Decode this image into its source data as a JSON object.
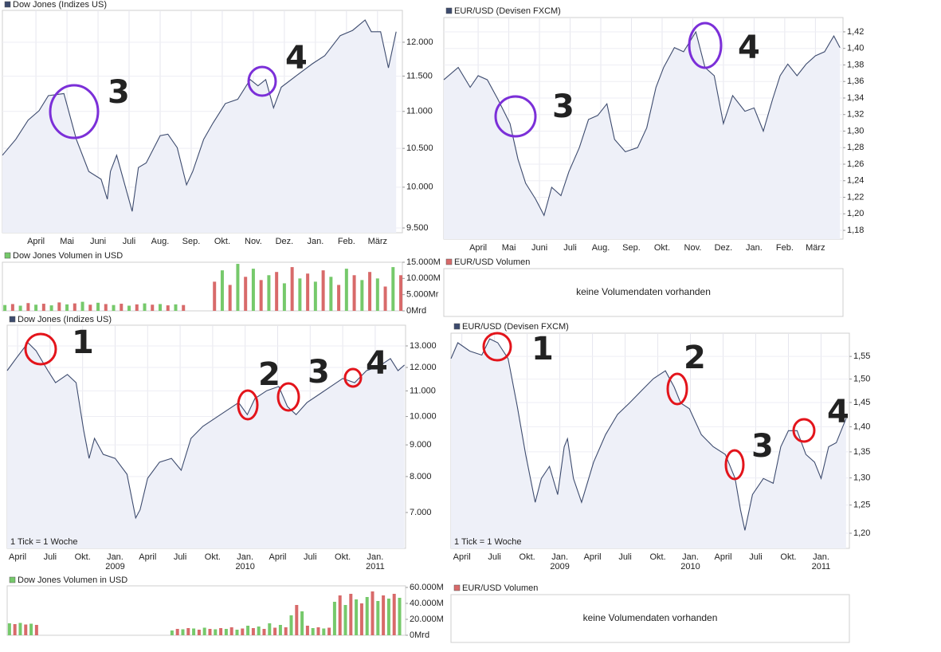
{
  "chart_data": [
    {
      "type": "line",
      "title": "Dow Jones (Indizes US)",
      "log": true,
      "grid": true,
      "color": "#3d4b6e",
      "annotation_color": "#7b2fd8",
      "annotations": [
        "3",
        "4"
      ],
      "x": [
        1.92,
        2.35,
        2.75,
        3.1,
        3.4,
        3.9,
        4.3,
        4.7,
        5.1,
        5.3,
        5.4,
        5.6,
        6.1,
        6.3,
        6.55,
        7.0,
        7.25,
        7.55,
        7.85,
        8.05,
        8.4,
        8.7,
        9.1,
        9.5,
        9.9,
        10.15,
        10.4,
        10.65,
        10.9,
        11.4,
        11.9,
        12.3,
        12.8,
        13.2,
        13.6,
        13.8,
        14.1,
        14.35,
        14.6
      ],
      "values": [
        10410,
        10620,
        10880,
        11010,
        11220,
        11250,
        10620,
        10200,
        10100,
        9850,
        10200,
        10410,
        9700,
        10250,
        10310,
        10670,
        10690,
        10510,
        10030,
        10200,
        10620,
        10840,
        11110,
        11170,
        11450,
        11360,
        11450,
        11050,
        11340,
        11510,
        11680,
        11800,
        12100,
        12180,
        12340,
        12160,
        12160,
        11620,
        12160
      ],
      "xlim": [
        1.92,
        14.8
      ],
      "ylim": [
        9443,
        12491
      ],
      "xticks": [
        {
          "value": 3,
          "label": "April"
        },
        {
          "value": 4,
          "label": "Mai"
        },
        {
          "value": 5,
          "label": "Juni"
        },
        {
          "value": 6,
          "label": "Juli"
        },
        {
          "value": 7,
          "label": "Aug."
        },
        {
          "value": 8,
          "label": "Sep."
        },
        {
          "value": 9,
          "label": "Okt."
        },
        {
          "value": 10,
          "label": "Nov."
        },
        {
          "value": 11,
          "label": "Dez."
        },
        {
          "value": 12,
          "label": "Jan."
        },
        {
          "value": 13,
          "label": "Feb."
        },
        {
          "value": 14,
          "label": "März"
        }
      ],
      "yticks": [
        {
          "value": 9500,
          "label": "9.500"
        },
        {
          "value": 10000,
          "label": "10.000"
        },
        {
          "value": 10500,
          "label": "10.500"
        },
        {
          "value": 11000,
          "label": "11.000"
        },
        {
          "value": 11500,
          "label": "11.500"
        },
        {
          "value": 12000,
          "label": "12.000"
        }
      ]
    },
    {
      "type": "bar",
      "title": "Dow Jones Volumen in USD",
      "colors": [
        "#76c96b",
        "#d86a6a"
      ],
      "x": [
        2.0,
        2.25,
        2.5,
        2.75,
        3.0,
        3.25,
        3.5,
        3.75,
        4.0,
        4.25,
        4.5,
        4.75,
        5.0,
        5.25,
        5.5,
        5.75,
        6.0,
        6.25,
        6.5,
        6.75,
        7.0,
        7.25,
        7.5,
        7.75,
        8.0,
        8.25,
        8.5,
        8.75,
        9.0,
        9.25,
        9.5,
        9.75,
        10.0,
        10.25,
        10.5,
        10.75,
        11.0,
        11.25,
        11.5,
        11.75,
        12.0,
        12.25,
        12.5,
        12.75,
        13.0,
        13.25,
        13.5,
        13.75,
        14.0,
        14.25,
        14.5,
        14.75
      ],
      "values": [
        1800,
        2100,
        1600,
        2400,
        1900,
        2200,
        1700,
        2600,
        2000,
        2300,
        2800,
        1900,
        2500,
        2100,
        1800,
        2200,
        1600,
        2000,
        2300,
        1900,
        2100,
        1700,
        2000,
        1800,
        null,
        null,
        null,
        9000,
        12500,
        8000,
        14500,
        10500,
        13000,
        9500,
        11000,
        12000,
        8500,
        13500,
        10000,
        11500,
        9000,
        12500,
        10500,
        8000,
        13000,
        11000,
        9500,
        12000,
        10000,
        7500,
        13500,
        11000
      ],
      "xlim": [
        1.92,
        14.8
      ],
      "ylim": [
        0,
        15000
      ],
      "yticks": [
        {
          "value": 0,
          "label": "0Mrd"
        },
        {
          "value": 5000,
          "label": "5.000Mr"
        },
        {
          "value": 10000,
          "label": "10.000M"
        },
        {
          "value": 15000,
          "label": "15.000M"
        }
      ]
    },
    {
      "type": "line",
      "title": "EUR/USD (Devisen FXCM)",
      "log": false,
      "grid": true,
      "color": "#3d4b6e",
      "annotation_color": "#7b2fd8",
      "annotations": [
        "3",
        "4"
      ],
      "x": [
        1.88,
        2.35,
        2.74,
        3.0,
        3.3,
        3.65,
        4.04,
        4.3,
        4.55,
        4.87,
        5.15,
        5.4,
        5.7,
        5.96,
        6.3,
        6.6,
        6.9,
        7.2,
        7.45,
        7.8,
        8.2,
        8.5,
        8.8,
        9.05,
        9.4,
        9.7,
        10.1,
        10.4,
        10.7,
        11.0,
        11.3,
        11.7,
        12.0,
        12.3,
        12.6,
        12.85,
        13.1,
        13.4,
        13.7,
        14.0,
        14.3,
        14.6,
        14.8
      ],
      "values": [
        1.362,
        1.377,
        1.353,
        1.367,
        1.362,
        1.338,
        1.309,
        1.266,
        1.237,
        1.218,
        1.198,
        1.232,
        1.222,
        1.251,
        1.28,
        1.314,
        1.319,
        1.333,
        1.29,
        1.275,
        1.28,
        1.304,
        1.353,
        1.377,
        1.401,
        1.396,
        1.42,
        1.377,
        1.367,
        1.309,
        1.343,
        1.324,
        1.328,
        1.3,
        1.338,
        1.367,
        1.381,
        1.367,
        1.381,
        1.391,
        1.396,
        1.415,
        1.401
      ],
      "xlim": [
        1.88,
        14.9
      ],
      "ylim": [
        1.1694,
        1.4373
      ],
      "xticks": [
        {
          "value": 3,
          "label": "April"
        },
        {
          "value": 4,
          "label": "Mai"
        },
        {
          "value": 5,
          "label": "Juni"
        },
        {
          "value": 6,
          "label": "Juli"
        },
        {
          "value": 7,
          "label": "Aug."
        },
        {
          "value": 8,
          "label": "Sep."
        },
        {
          "value": 9,
          "label": "Okt."
        },
        {
          "value": 10,
          "label": "Nov."
        },
        {
          "value": 11,
          "label": "Dez."
        },
        {
          "value": 12,
          "label": "Jan."
        },
        {
          "value": 13,
          "label": "Feb."
        },
        {
          "value": 14,
          "label": "März"
        }
      ],
      "yticks": [
        {
          "value": 1.18,
          "label": "1,18"
        },
        {
          "value": 1.2,
          "label": "1,20"
        },
        {
          "value": 1.22,
          "label": "1,22"
        },
        {
          "value": 1.24,
          "label": "1,24"
        },
        {
          "value": 1.26,
          "label": "1,26"
        },
        {
          "value": 1.28,
          "label": "1,28"
        },
        {
          "value": 1.3,
          "label": "1,30"
        },
        {
          "value": 1.32,
          "label": "1,32"
        },
        {
          "value": 1.34,
          "label": "1,34"
        },
        {
          "value": 1.36,
          "label": "1,36"
        },
        {
          "value": 1.38,
          "label": "1,38"
        },
        {
          "value": 1.4,
          "label": "1,40"
        },
        {
          "value": 1.42,
          "label": "1,42"
        }
      ]
    },
    {
      "type": "line",
      "title": "Dow Jones (Indizes US)",
      "log": true,
      "grid": true,
      "color": "#3d4b6e",
      "note": "1 Tick = 1 Woche",
      "annotation_color": "#e3141b",
      "annotations": [
        "1",
        "2",
        "3",
        "4"
      ],
      "x": [
        2.04,
        2.85,
        3.96,
        4.7,
        5.8,
        6.5,
        7.6,
        8.4,
        9.1,
        9.6,
        10.1,
        10.9,
        12.0,
        13.1,
        13.9,
        14.3,
        15.0,
        16.1,
        17.2,
        18.1,
        19.0,
        20.1,
        21.2,
        22.3,
        23.4,
        24.2,
        24.9,
        26.0,
        27.1,
        27.9,
        28.7,
        29.7,
        30.8,
        31.9,
        33.0,
        34.1,
        35.2,
        36.3,
        37.4,
        38.1,
        38.7
      ],
      "values": [
        11860,
        12400,
        13155,
        12770,
        11860,
        11340,
        11690,
        11340,
        9500,
        8560,
        9220,
        8690,
        8560,
        8070,
        6860,
        7070,
        7950,
        8440,
        8560,
        8190,
        9220,
        9640,
        9930,
        10230,
        10530,
        10070,
        10690,
        11010,
        11180,
        10380,
        10070,
        10530,
        10850,
        11180,
        11520,
        11340,
        11860,
        12040,
        12400,
        11860,
        12110
      ],
      "xlim": [
        2.04,
        38.8
      ],
      "ylim": [
        6126,
        14040
      ],
      "xticks": [
        {
          "value": 3,
          "label": "April"
        },
        {
          "value": 6,
          "label": "Juli"
        },
        {
          "value": 9,
          "label": "Okt."
        },
        {
          "value": 12,
          "label": "Jan."
        },
        {
          "value": 15,
          "label": "April"
        },
        {
          "value": 18,
          "label": "Juli"
        },
        {
          "value": 21,
          "label": "Okt."
        },
        {
          "value": 24,
          "label": "Jan."
        },
        {
          "value": 27,
          "label": "April"
        },
        {
          "value": 30,
          "label": "Juli"
        },
        {
          "value": 33,
          "label": "Okt."
        },
        {
          "value": 36,
          "label": "Jan."
        }
      ],
      "year_ticks": [
        {
          "value": 12,
          "label": "2009"
        },
        {
          "value": 24,
          "label": "2010"
        },
        {
          "value": 36,
          "label": "2011"
        }
      ],
      "yticks": [
        {
          "value": 7000,
          "label": "7.000"
        },
        {
          "value": 8000,
          "label": "8.000"
        },
        {
          "value": 9000,
          "label": "9.000"
        },
        {
          "value": 10000,
          "label": "10.000"
        },
        {
          "value": 11000,
          "label": "11.000"
        },
        {
          "value": 12000,
          "label": "12.000"
        },
        {
          "value": 13000,
          "label": "13.000"
        }
      ]
    },
    {
      "type": "bar",
      "title": "Dow Jones Volumen in USD",
      "colors": [
        "#76c96b",
        "#d86a6a"
      ],
      "x": [
        2.25,
        2.75,
        3.25,
        3.75,
        4.25,
        4.75,
        5.25,
        5.75,
        6.25,
        6.75,
        7.25,
        7.75,
        8.25,
        8.75,
        9.25,
        9.75,
        10.25,
        10.75,
        11.25,
        11.75,
        12.25,
        12.75,
        13.25,
        13.75,
        14.25,
        14.75,
        15.25,
        15.75,
        16.25,
        16.75,
        17.25,
        17.75,
        18.25,
        18.75,
        19.25,
        19.75,
        20.25,
        20.75,
        21.25,
        21.75,
        22.25,
        22.75,
        23.25,
        23.75,
        24.25,
        24.75,
        25.25,
        25.75,
        26.25,
        26.75,
        27.25,
        27.75,
        28.25,
        28.75,
        29.25,
        29.75,
        30.25,
        30.75,
        31.25,
        31.75,
        32.25,
        32.75,
        33.25,
        33.75,
        34.25,
        34.75,
        35.25,
        35.75,
        36.25,
        36.75,
        37.25,
        37.75,
        38.25
      ],
      "values": [
        15000,
        14000,
        15500,
        13500,
        14500,
        13000,
        null,
        null,
        null,
        null,
        null,
        null,
        null,
        null,
        null,
        null,
        null,
        null,
        null,
        null,
        null,
        null,
        null,
        null,
        null,
        null,
        null,
        null,
        null,
        null,
        6000,
        8000,
        7500,
        9000,
        8500,
        7000,
        9500,
        8000,
        7500,
        9000,
        8000,
        10000,
        7000,
        8500,
        12000,
        9000,
        11000,
        8000,
        15000,
        9500,
        13000,
        10000,
        25000,
        38000,
        30000,
        12000,
        9000,
        10000,
        8500,
        9500,
        42000,
        50000,
        38000,
        52000,
        45000,
        40000,
        48000,
        55000,
        43000,
        50000,
        46000,
        52000,
        47000
      ],
      "xlim": [
        2.04,
        38.8
      ],
      "ylim": [
        0,
        62000
      ],
      "yticks": [
        {
          "value": 0,
          "label": "0Mrd"
        },
        {
          "value": 20000,
          "label": "20.000M"
        },
        {
          "value": 40000,
          "label": "40.000M"
        },
        {
          "value": 60000,
          "label": "60.000M"
        }
      ]
    },
    {
      "type": "line",
      "title": "EUR/USD (Devisen FXCM)",
      "log": true,
      "grid": true,
      "color": "#3d4b6e",
      "note": "1 Tick = 1 Woche",
      "annotation_color": "#e3141b",
      "annotations": [
        "1",
        "2",
        "3",
        "4"
      ],
      "x": [
        2.0,
        2.63,
        3.73,
        4.83,
        5.56,
        6.3,
        7.25,
        8.1,
        8.86,
        9.74,
        10.3,
        11.05,
        11.8,
        12.4,
        12.7,
        13.25,
        14.0,
        15.1,
        16.2,
        17.3,
        18.4,
        19.5,
        20.6,
        21.7,
        22.5,
        23.1,
        23.9,
        25.0,
        26.1,
        27.2,
        28.1,
        28.6,
        29.0,
        29.7,
        30.7,
        31.6,
        32.3,
        33.0,
        33.8,
        34.6,
        35.4,
        36.0,
        36.7,
        37.4,
        38.3
      ],
      "values": [
        1.545,
        1.581,
        1.562,
        1.553,
        1.59,
        1.581,
        1.545,
        1.441,
        1.345,
        1.255,
        1.299,
        1.322,
        1.269,
        1.36,
        1.376,
        1.299,
        1.255,
        1.33,
        1.384,
        1.425,
        1.449,
        1.475,
        1.501,
        1.518,
        1.483,
        1.449,
        1.437,
        1.384,
        1.36,
        1.345,
        1.299,
        1.241,
        1.205,
        1.269,
        1.299,
        1.29,
        1.36,
        1.392,
        1.392,
        1.345,
        1.33,
        1.299,
        1.36,
        1.368,
        1.417
      ],
      "xlim": [
        2.0,
        38.6
      ],
      "ylim": [
        1.174,
        1.603
      ],
      "xticks": [
        {
          "value": 3,
          "label": "April"
        },
        {
          "value": 6,
          "label": "Juli"
        },
        {
          "value": 9,
          "label": "Okt."
        },
        {
          "value": 12,
          "label": "Jan."
        },
        {
          "value": 15,
          "label": "April"
        },
        {
          "value": 18,
          "label": "Juli"
        },
        {
          "value": 21,
          "label": "Okt."
        },
        {
          "value": 24,
          "label": "Jan."
        },
        {
          "value": 27,
          "label": "April"
        },
        {
          "value": 30,
          "label": "Juli"
        },
        {
          "value": 33,
          "label": "Okt."
        },
        {
          "value": 36,
          "label": "Jan."
        }
      ],
      "year_ticks": [
        {
          "value": 12,
          "label": "2009"
        },
        {
          "value": 24,
          "label": "2010"
        },
        {
          "value": 36,
          "label": "2011"
        }
      ],
      "yticks": [
        {
          "value": 1.2,
          "label": "1,20"
        },
        {
          "value": 1.25,
          "label": "1,25"
        },
        {
          "value": 1.3,
          "label": "1,30"
        },
        {
          "value": 1.35,
          "label": "1,35"
        },
        {
          "value": 1.4,
          "label": "1,40"
        },
        {
          "value": 1.45,
          "label": "1,45"
        },
        {
          "value": 1.5,
          "label": "1,50"
        },
        {
          "value": 1.55,
          "label": "1,55"
        }
      ]
    }
  ],
  "panels": [
    {
      "title": "EUR/USD Volumen",
      "message": "keine Volumendaten vorhanden"
    },
    {
      "title": "EUR/USD Volumen",
      "message": "keine Volumendaten vorhanden"
    }
  ]
}
